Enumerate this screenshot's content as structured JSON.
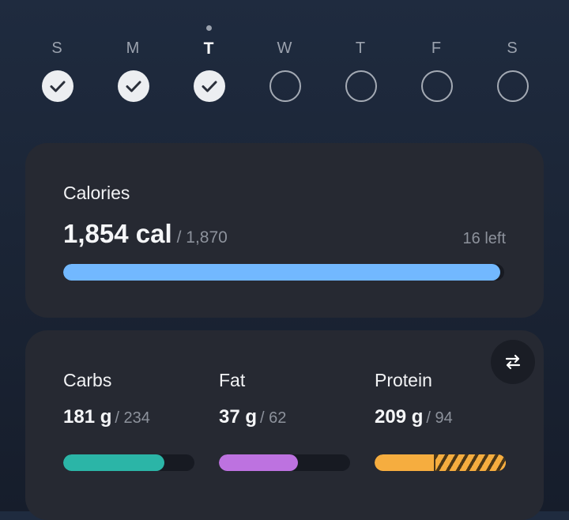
{
  "week": {
    "days": [
      {
        "letter": "S",
        "status": "done"
      },
      {
        "letter": "M",
        "status": "done"
      },
      {
        "letter": "T",
        "status": "done",
        "today": true
      },
      {
        "letter": "W",
        "status": "open"
      },
      {
        "letter": "T",
        "status": "open"
      },
      {
        "letter": "F",
        "status": "open"
      },
      {
        "letter": "S",
        "status": "open"
      }
    ]
  },
  "calories": {
    "title": "Calories",
    "value": "1,854 cal",
    "goal": "/ 1,870",
    "left": "16 left",
    "progress": 0.991,
    "color": "#72b8ff"
  },
  "macros": {
    "swap_icon": "swap-arrows-icon",
    "items": [
      {
        "name": "Carbs",
        "value": "181 g",
        "goal": "/ 234",
        "progress": 0.77,
        "color": "#2bb5a7"
      },
      {
        "name": "Fat",
        "value": "37 g",
        "goal": "/ 62",
        "progress": 0.6,
        "color": "#bd72e0"
      },
      {
        "name": "Protein",
        "value": "209 g",
        "goal": "/ 94",
        "progress": 1.0,
        "goal_fraction": 0.45,
        "color": "#f6ad3f",
        "over": true
      }
    ]
  }
}
